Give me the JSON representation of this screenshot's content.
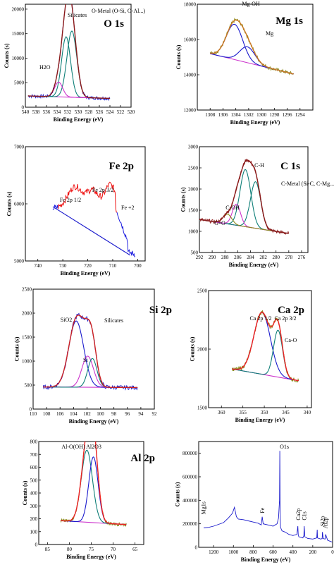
{
  "chart_data": [
    {
      "type": "line",
      "title": "O 1s",
      "xlabel": "Binding Energy (eV)",
      "ylabel": "Counts (s)",
      "xlim": [
        540,
        520
      ],
      "ylim": [
        0,
        21000
      ],
      "xticks": [
        540,
        538,
        536,
        534,
        532,
        530,
        528,
        526,
        524,
        522,
        520
      ],
      "yticks": [
        0,
        5000,
        10000,
        15000,
        20000
      ],
      "annotations": [
        "Silicates",
        "O-Metal (O-Si, O-Al...)",
        "H2O"
      ],
      "background": [
        [
          539.5,
          2300
        ],
        [
          524,
          1800
        ]
      ],
      "peaks": [
        {
          "center": 531.2,
          "height": 13500,
          "fwhm": 2.2,
          "color": "#0f7f78"
        },
        {
          "center": 532.3,
          "height": 12300,
          "fwhm": 2.0,
          "color": "#0f7f78"
        },
        {
          "center": 533.7,
          "height": 3000,
          "fwhm": 1.8,
          "color": "#cc33cc"
        }
      ],
      "noise_x": [
        539.5,
        524
      ],
      "noise_color": "#2020d0",
      "envelope_color": "#8b1a1a"
    },
    {
      "type": "line",
      "title": "Mg 1s",
      "xlabel": "Binding Energy (eV)",
      "ylabel": "Counts (s)",
      "xlim": [
        1310,
        1292
      ],
      "ylim": [
        12000,
        18000
      ],
      "xticks": [
        1308,
        1306,
        1304,
        1302,
        1300,
        1298,
        1296,
        1294
      ],
      "yticks": [
        12000,
        14000,
        16000,
        18000
      ],
      "annotations": [
        "Mg-OH",
        "Mg"
      ],
      "background": [
        [
          1308,
          15200
        ],
        [
          1299,
          14400
        ]
      ],
      "peaks": [
        {
          "center": 1304.2,
          "height": 2000,
          "fwhm": 3.0,
          "color": "#1a1acc"
        },
        {
          "center": 1302.2,
          "height": 900,
          "fwhm": 2.8,
          "color": "#1a1acc"
        }
      ],
      "noise_x": [
        1308,
        1295
      ],
      "noise_color": "#8b8b1a",
      "envelope_color": "#cc7722"
    },
    {
      "type": "line",
      "title": "Fe 2p",
      "xlabel": "Binding Energy (eV)",
      "ylabel": "Counts (s)",
      "xlim": [
        745,
        697
      ],
      "ylim": [
        5000,
        7000
      ],
      "xticks": [
        740,
        730,
        720,
        710,
        700
      ],
      "yticks": [
        5000,
        6000,
        7000
      ],
      "annotations": [
        "Fe 2p 1/2",
        "Fe 2p 3/2",
        "Fe +2"
      ],
      "background": [
        [
          734,
          5950
        ],
        [
          703,
          5100
        ]
      ],
      "peaks": [],
      "noise_x": [
        734,
        701
      ],
      "noise_color": "#2020e0",
      "envelope_color": "#ee1111"
    },
    {
      "type": "line",
      "title": "C 1s",
      "xlabel": "Binding Energy (eV)",
      "ylabel": "Counts (s)",
      "xlim": [
        292,
        275
      ],
      "ylim": [
        500,
        3000
      ],
      "xticks": [
        292,
        290,
        288,
        286,
        284,
        282,
        280,
        278,
        276
      ],
      "yticks": [
        500,
        1000,
        1500,
        2000,
        2500,
        3000
      ],
      "annotations": [
        "C-H",
        "C-Metal (Si-C, C-Mg...)",
        "C-OH",
        "C=O"
      ],
      "background": [
        [
          292,
          1280
        ],
        [
          278,
          950
        ]
      ],
      "peaks": [
        {
          "center": 284.8,
          "height": 1350,
          "fwhm": 2.0,
          "color": "#0f7f78"
        },
        {
          "center": 283.2,
          "height": 1100,
          "fwhm": 1.9,
          "color": "#0f7f78"
        },
        {
          "center": 286.2,
          "height": 500,
          "fwhm": 1.5,
          "color": "#cc33cc"
        },
        {
          "center": 287.6,
          "height": 230,
          "fwhm": 1.6,
          "color": "#8b8b1a"
        }
      ],
      "noise_x": [
        292,
        278
      ],
      "noise_color": "#8b1a1a",
      "envelope_color": "#8b1a1a"
    },
    {
      "type": "line",
      "title": "Si 2p",
      "xlabel": "Binding Energy (eV)",
      "ylabel": "Counts (s)",
      "xlim": [
        110,
        92
      ],
      "ylim": [
        0,
        2500
      ],
      "xticks": [
        110,
        108,
        106,
        104,
        102,
        100,
        98,
        96,
        94,
        92
      ],
      "yticks": [
        0,
        500,
        1000,
        1500,
        2000,
        2500
      ],
      "annotations": [
        "SiO2",
        "Silicates",
        "Si"
      ],
      "background": [
        [
          108.5,
          460
        ],
        [
          95,
          450
        ]
      ],
      "peaks": [
        {
          "center": 103.6,
          "height": 1380,
          "fwhm": 2.6,
          "color": "#1a1acc"
        },
        {
          "center": 101.9,
          "height": 650,
          "fwhm": 2.0,
          "color": "#cc33cc"
        },
        {
          "center": 101.2,
          "height": 600,
          "fwhm": 1.6,
          "color": "#0f7f78"
        }
      ],
      "noise_x": [
        108.5,
        94.5
      ],
      "noise_color": "#1a1acc",
      "envelope_color": "#cc2222"
    },
    {
      "type": "line",
      "title": "Ca 2p",
      "xlabel": "Binding Energy (eV)",
      "ylabel": "Counts (s)",
      "xlim": [
        363,
        339
      ],
      "ylim": [
        1500,
        2500
      ],
      "xticks": [
        360,
        355,
        350,
        345,
        340
      ],
      "yticks": [
        1500,
        2000,
        2500
      ],
      "annotations": [
        "Ca 2p 1/2",
        "Ca 2p 3/2",
        "Ca-O"
      ],
      "background": [
        [
          357.5,
          1830
        ],
        [
          343.5,
          1740
        ]
      ],
      "peaks": [
        {
          "center": 350.5,
          "height": 530,
          "fwhm": 4.5,
          "color": "#1a1acc"
        },
        {
          "center": 346.8,
          "height": 400,
          "fwhm": 2.5,
          "color": "#0f7f78"
        }
      ],
      "noise_x": [
        357.5,
        342
      ],
      "noise_color": "#8b8b1a",
      "envelope_color": "#ee2222"
    },
    {
      "type": "line",
      "title": "Al 2p",
      "xlabel": "Binding Energy (eV)",
      "ylabel": "Counts (s)",
      "xlim": [
        87,
        63
      ],
      "ylim": [
        0,
        800
      ],
      "xticks": [
        85,
        80,
        75,
        70,
        65
      ],
      "yticks": [
        0,
        100,
        200,
        300,
        400,
        500,
        600,
        700,
        800
      ],
      "annotations": [
        "Al-O(OH)",
        "Al2O3"
      ],
      "background": [
        [
          82,
          185
        ],
        [
          67,
          155
        ]
      ],
      "peaks": [
        {
          "center": 76.0,
          "height": 560,
          "fwhm": 3.0,
          "color": "#0f7f78"
        },
        {
          "center": 74.5,
          "height": 510,
          "fwhm": 2.5,
          "color": "#1a1acc"
        }
      ],
      "noise_x": [
        82,
        67
      ],
      "noise_color": "#8b8b1a",
      "envelope_color": "#ee2222"
    },
    {
      "type": "line",
      "title": "",
      "xlabel": "Binding Energy (eV)",
      "ylabel": "Counts (s)",
      "xlim": [
        1350,
        0
      ],
      "ylim": [
        0,
        900000
      ],
      "xticks": [
        1200,
        1000,
        800,
        600,
        400,
        200,
        0
      ],
      "yticks": [
        0,
        200000,
        400000,
        600000,
        800000
      ],
      "annotations": [
        "O1s",
        "Mg1s",
        "Fe",
        "Ca2p",
        "C1s",
        "Si2p",
        "Al2p"
      ],
      "series": [
        {
          "x": [
            1300,
            1250,
            1200,
            1150,
            1100,
            1050,
            1010,
            990,
            980,
            970,
            950,
            900,
            850,
            800,
            750,
            720,
            710,
            700,
            650,
            600,
            560,
            545,
            535,
            532,
            529,
            525,
            510,
            480,
            440,
            400,
            360,
            350,
            347,
            340,
            300,
            290,
            286,
            280,
            250,
            200,
            160,
            155,
            152,
            120,
            105,
            102,
            95,
            75,
            70,
            50,
            20,
            5
          ],
          "y": [
            165000,
            170000,
            180000,
            195000,
            210000,
            250000,
            290000,
            340000,
            300000,
            260000,
            240000,
            235000,
            225000,
            215000,
            205000,
            190000,
            260000,
            200000,
            190000,
            180000,
            200000,
            250000,
            400000,
            820000,
            300000,
            170000,
            140000,
            130000,
            110000,
            100000,
            110000,
            180000,
            110000,
            90000,
            80000,
            100000,
            180000,
            90000,
            75000,
            70000,
            80000,
            150000,
            80000,
            70000,
            75000,
            130000,
            75000,
            70000,
            110000,
            60000,
            50000,
            45000
          ],
          "color": "#1a1acc"
        }
      ]
    }
  ]
}
